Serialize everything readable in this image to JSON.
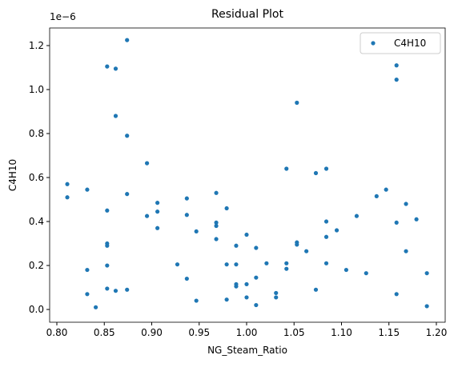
{
  "chart_data": {
    "type": "scatter",
    "title": "Residual Plot",
    "x_label": "NG_Steam_Ratio",
    "y_label": "C4H10",
    "y_offset_text": "1e−6",
    "series": [
      {
        "name": "C4H10",
        "color": "#1f77b4",
        "x": [
          0.811,
          0.811,
          0.832,
          0.832,
          0.832,
          0.841,
          0.853,
          0.853,
          0.853,
          0.853,
          0.853,
          0.853,
          0.862,
          0.862,
          0.862,
          0.874,
          0.874,
          0.874,
          0.874,
          0.895,
          0.895,
          0.906,
          0.906,
          0.906,
          0.927,
          0.937,
          0.937,
          0.937,
          0.947,
          0.947,
          0.968,
          0.968,
          0.968,
          0.968,
          0.979,
          0.979,
          0.979,
          0.989,
          0.989,
          0.989,
          0.989,
          1.0,
          1.0,
          1.0,
          1.01,
          1.01,
          1.01,
          1.021,
          1.031,
          1.031,
          1.042,
          1.042,
          1.042,
          1.053,
          1.053,
          1.053,
          1.063,
          1.073,
          1.073,
          1.084,
          1.084,
          1.084,
          1.084,
          1.095,
          1.105,
          1.116,
          1.126,
          1.137,
          1.147,
          1.158,
          1.158,
          1.158,
          1.158,
          1.168,
          1.168,
          1.179,
          1.19,
          1.19
        ],
        "values": [
          0.57,
          0.51,
          0.545,
          0.18,
          0.07,
          0.01,
          1.105,
          0.45,
          0.3,
          0.29,
          0.2,
          0.095,
          1.095,
          0.88,
          0.085,
          1.225,
          0.79,
          0.525,
          0.09,
          0.665,
          0.425,
          0.485,
          0.445,
          0.37,
          0.205,
          0.505,
          0.43,
          0.14,
          0.355,
          0.04,
          0.53,
          0.395,
          0.38,
          0.32,
          0.46,
          0.205,
          0.045,
          0.29,
          0.205,
          0.115,
          0.105,
          0.34,
          0.115,
          0.055,
          0.28,
          0.145,
          0.02,
          0.21,
          0.075,
          0.055,
          0.64,
          0.21,
          0.185,
          0.94,
          0.305,
          0.295,
          0.265,
          0.62,
          0.09,
          0.64,
          0.4,
          0.33,
          0.21,
          0.36,
          0.18,
          0.425,
          0.165,
          0.515,
          0.545,
          1.11,
          1.045,
          0.395,
          0.07,
          0.48,
          0.265,
          0.41,
          0.165,
          0.015
        ]
      }
    ],
    "xlim": [
      0.7924,
      1.2093
    ],
    "ylim": [
      -0.058,
      1.28
    ],
    "xticks": [
      {
        "value": 0.8,
        "label": "0.80"
      },
      {
        "value": 0.85,
        "label": "0.85"
      },
      {
        "value": 0.9,
        "label": "0.90"
      },
      {
        "value": 0.95,
        "label": "0.95"
      },
      {
        "value": 1.0,
        "label": "1.00"
      },
      {
        "value": 1.05,
        "label": "1.05"
      },
      {
        "value": 1.1,
        "label": "1.10"
      },
      {
        "value": 1.15,
        "label": "1.15"
      },
      {
        "value": 1.2,
        "label": "1.20"
      }
    ],
    "yticks": [
      {
        "value": 0,
        "label": "0.0"
      },
      0.2,
      0.4,
      0.6,
      0.8,
      {
        "value": 1,
        "label": "1.0"
      },
      1.2
    ],
    "legend": "upper right",
    "grid": false
  }
}
